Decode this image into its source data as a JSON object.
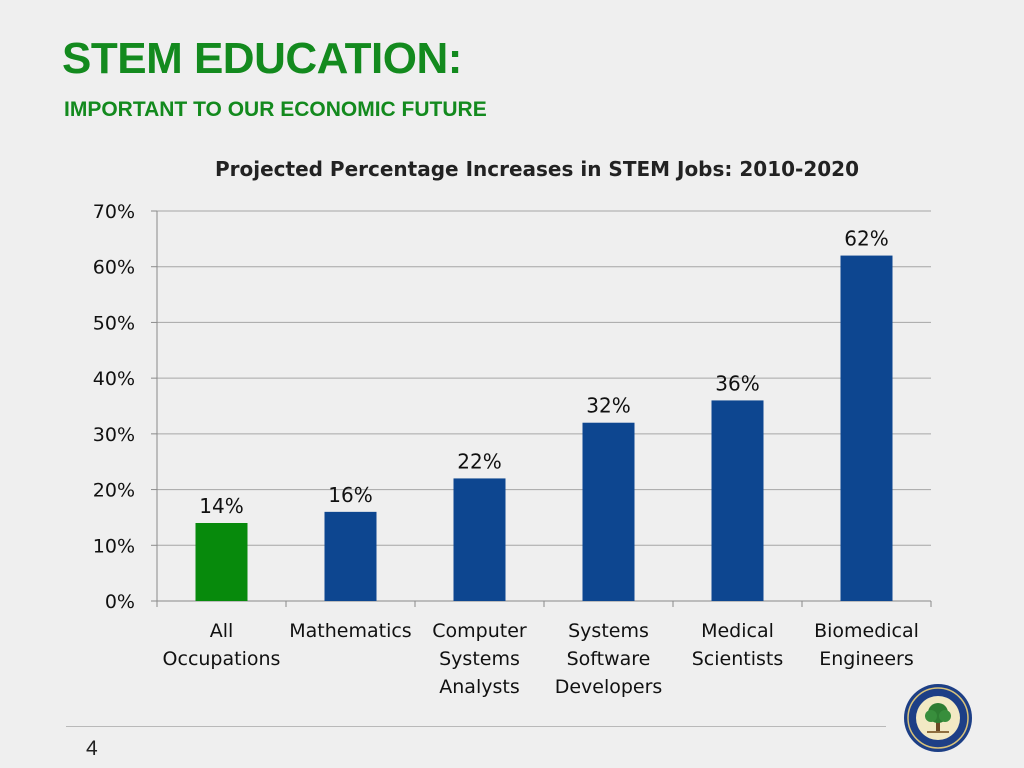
{
  "header": {
    "title": "STEM EDUCATION:",
    "subtitle": "IMPORTANT TO OUR ECONOMIC FUTURE"
  },
  "chart_data": {
    "type": "bar",
    "title": "Projected Percentage Increases in STEM Jobs: 2010-2020",
    "categories": [
      [
        "All",
        "Occupations"
      ],
      [
        "Mathematics"
      ],
      [
        "Computer",
        "Systems",
        "Analysts"
      ],
      [
        "Systems",
        "Software",
        "Developers"
      ],
      [
        "Medical",
        "Scientists"
      ],
      [
        "Biomedical",
        "Engineers"
      ]
    ],
    "values": [
      14,
      16,
      22,
      32,
      36,
      62
    ],
    "data_labels": [
      "14%",
      "16%",
      "22%",
      "32%",
      "36%",
      "62%"
    ],
    "bar_colors": [
      "#078a0c",
      "#0d4690",
      "#0d4690",
      "#0d4690",
      "#0d4690",
      "#0d4690"
    ],
    "ylim": [
      0,
      70
    ],
    "yticks": [
      0,
      10,
      20,
      30,
      40,
      50,
      60,
      70
    ],
    "ytick_labels": [
      "0%",
      "10%",
      "20%",
      "30%",
      "40%",
      "50%",
      "60%",
      "70%"
    ],
    "grid": true,
    "legend": "none",
    "xlabel": "",
    "ylabel": ""
  },
  "footer": {
    "page_number": "4",
    "seal_icon": "department-of-education-seal-icon"
  },
  "colors": {
    "title_green": "#138a1e",
    "background": "#efefef"
  }
}
